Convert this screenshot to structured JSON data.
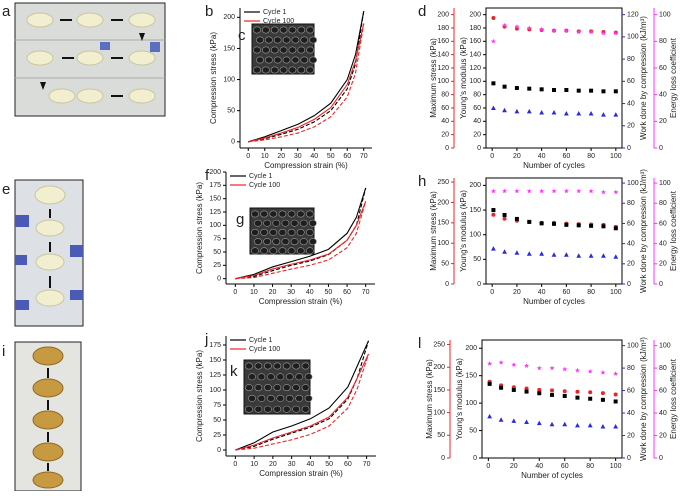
{
  "photos": [
    {
      "panel": "a"
    },
    {
      "panel": "e"
    },
    {
      "panel": "i"
    }
  ],
  "chart_data": [
    {
      "type": "line",
      "panel": "b",
      "inset_panel": "c",
      "x_label": "Compression strain (%)",
      "y_label": "Compression stress (kPa)",
      "xlim": [
        -5,
        75
      ],
      "xticks": [
        0,
        10,
        20,
        30,
        40,
        50,
        60,
        70
      ],
      "ylim": [
        -10,
        215
      ],
      "yticks": [
        0,
        50,
        100,
        150,
        200
      ],
      "x": [
        0,
        10,
        20,
        30,
        40,
        50,
        60,
        65,
        70
      ],
      "series": [
        {
          "name": "Cycle 1",
          "color": "#000000",
          "values": [
            0,
            8,
            18,
            28,
            42,
            62,
            100,
            140,
            210
          ],
          "unloading_values": [
            0,
            5,
            12,
            20,
            32,
            50,
            85,
            125,
            210
          ]
        },
        {
          "name": "Cycle 100",
          "color": "#e8262a",
          "values": [
            0,
            6,
            14,
            23,
            36,
            55,
            92,
            130,
            190
          ],
          "unloading_values": [
            0,
            3,
            8,
            14,
            24,
            40,
            72,
            110,
            190
          ]
        }
      ]
    },
    {
      "type": "scatter",
      "panel": "d",
      "x_label": "Number of cycles",
      "xlim": [
        -5,
        105
      ],
      "xticks": [
        0,
        20,
        40,
        60,
        80,
        100
      ],
      "x": [
        1,
        10,
        20,
        30,
        40,
        50,
        60,
        70,
        80,
        90,
        100
      ],
      "series": [
        {
          "name": "Maximum stress (kPa)",
          "color": "#e8262a",
          "marker": "circle",
          "ylim": [
            0,
            210
          ],
          "yticks": [
            0,
            20,
            40,
            60,
            80,
            100,
            120,
            140,
            160,
            180,
            200
          ],
          "values": [
            195,
            182,
            179,
            178,
            177,
            176,
            176,
            175,
            175,
            174,
            173
          ]
        },
        {
          "name": "Young's modulus (kPa)",
          "color": "#000000",
          "marker": "square",
          "ylim": [
            0,
            210
          ],
          "yticks": [
            0,
            20,
            40,
            60,
            80,
            100,
            120,
            140,
            160,
            180,
            200
          ],
          "values": [
            97,
            92,
            90,
            89,
            88,
            87,
            87,
            86,
            86,
            85,
            85
          ]
        },
        {
          "name": "Work done by compression (kJ/m³)",
          "color": "#2b2bd9",
          "marker": "triangle",
          "ylim": [
            0,
            126
          ],
          "yticks": [
            0,
            20,
            40,
            60,
            80,
            100,
            120
          ],
          "values": [
            36,
            34,
            33,
            33,
            32,
            32,
            31,
            31,
            31,
            30,
            30
          ]
        },
        {
          "name": "Energy loss coefficient",
          "color": "#ff33ff",
          "marker": "star",
          "ylim": [
            0,
            105
          ],
          "yticks": [
            0,
            20,
            40,
            60,
            80,
            100
          ],
          "values": [
            80,
            92,
            91,
            90,
            89,
            88,
            88,
            87,
            87,
            86,
            86
          ]
        }
      ]
    },
    {
      "type": "line",
      "panel": "f",
      "inset_panel": "g",
      "x_label": "Compression strain (%)",
      "y_label": "Compression stress (kPa)",
      "xlim": [
        -5,
        75
      ],
      "xticks": [
        0,
        10,
        20,
        30,
        40,
        50,
        60,
        70
      ],
      "ylim": [
        -10,
        200
      ],
      "yticks": [
        0,
        25,
        50,
        75,
        100,
        125,
        150,
        175,
        200
      ],
      "x": [
        0,
        10,
        20,
        30,
        40,
        50,
        60,
        65,
        70
      ],
      "series": [
        {
          "name": "Cycle 1",
          "color": "#000000",
          "values": [
            0,
            8,
            22,
            32,
            42,
            55,
            85,
            115,
            170
          ],
          "unloading_values": [
            0,
            4,
            15,
            25,
            33,
            45,
            72,
            100,
            170
          ]
        },
        {
          "name": "Cycle 100",
          "color": "#e8262a",
          "values": [
            0,
            6,
            18,
            27,
            35,
            46,
            72,
            100,
            145
          ],
          "unloading_values": [
            0,
            2,
            10,
            18,
            25,
            35,
            58,
            85,
            145
          ]
        }
      ]
    },
    {
      "type": "scatter",
      "panel": "h",
      "x_label": "Number of cycles",
      "xlim": [
        -5,
        105
      ],
      "xticks": [
        0,
        20,
        40,
        60,
        80,
        100
      ],
      "x": [
        1,
        10,
        20,
        30,
        40,
        50,
        60,
        70,
        80,
        90,
        100
      ],
      "series": [
        {
          "name": "Maximum stress (kPa)",
          "color": "#e8262a",
          "marker": "circle",
          "ylim": [
            0,
            260
          ],
          "yticks": [
            0,
            50,
            100,
            150,
            200,
            250
          ],
          "values": [
            170,
            160,
            155,
            152,
            150,
            150,
            148,
            147,
            146,
            145,
            140
          ]
        },
        {
          "name": "Young's modulus (kPa)",
          "color": "#000000",
          "marker": "square",
          "ylim": [
            0,
            215
          ],
          "yticks": [
            0,
            50,
            100,
            150,
            200
          ],
          "values": [
            150,
            140,
            132,
            126,
            123,
            122,
            120,
            119,
            118,
            117,
            113
          ]
        },
        {
          "name": "Work done by compression (kJ/m³)",
          "color": "#2b2bd9",
          "marker": "triangle",
          "ylim": [
            0,
            105
          ],
          "yticks": [
            0,
            20,
            40,
            60,
            80,
            100
          ],
          "values": [
            35,
            32,
            31,
            30,
            30,
            29,
            29,
            28,
            28,
            28,
            27
          ]
        },
        {
          "name": "Energy loss coefficient",
          "color": "#ff33ff",
          "marker": "star",
          "ylim": [
            0,
            105
          ],
          "yticks": [
            0,
            20,
            40,
            60,
            80,
            100
          ],
          "values": [
            92,
            92,
            92,
            92,
            92,
            92,
            92,
            92,
            92,
            91,
            91
          ]
        }
      ]
    },
    {
      "type": "line",
      "panel": "j",
      "inset_panel": "k",
      "x_label": "Compression strain (%)",
      "y_label": "Compression stress (kPa)",
      "xlim": [
        -5,
        75
      ],
      "xticks": [
        0,
        10,
        20,
        30,
        40,
        50,
        60,
        70
      ],
      "ylim": [
        -10,
        190
      ],
      "yticks": [
        0,
        25,
        50,
        75,
        100,
        125,
        150,
        175
      ],
      "x": [
        0,
        10,
        20,
        30,
        40,
        50,
        60,
        65,
        71
      ],
      "series": [
        {
          "name": "Cycle 1",
          "color": "#000000",
          "values": [
            0,
            12,
            30,
            40,
            52,
            70,
            105,
            140,
            182
          ],
          "unloading_values": [
            0,
            6,
            18,
            28,
            38,
            52,
            85,
            120,
            182
          ]
        },
        {
          "name": "Cycle 100",
          "color": "#e8262a",
          "values": [
            0,
            8,
            20,
            30,
            40,
            55,
            88,
            120,
            160
          ],
          "unloading_values": [
            0,
            3,
            10,
            17,
            26,
            40,
            70,
            102,
            160
          ]
        }
      ]
    },
    {
      "type": "scatter",
      "panel": "l",
      "x_label": "Number of cycles",
      "xlim": [
        -5,
        105
      ],
      "xticks": [
        0,
        20,
        40,
        60,
        80,
        100
      ],
      "x": [
        1,
        10,
        20,
        30,
        40,
        50,
        60,
        70,
        80,
        90,
        100
      ],
      "series": [
        {
          "name": "Maximum stress (kPa)",
          "color": "#e8262a",
          "marker": "circle",
          "ylim": [
            0,
            260
          ],
          "yticks": [
            0,
            50,
            100,
            150,
            200,
            250
          ],
          "values": [
            168,
            160,
            156,
            153,
            150,
            149,
            147,
            146,
            145,
            143,
            140
          ]
        },
        {
          "name": "Young's modulus (kPa)",
          "color": "#000000",
          "marker": "square",
          "ylim": [
            0,
            215
          ],
          "yticks": [
            0,
            50,
            100,
            150,
            200
          ],
          "values": [
            135,
            128,
            124,
            121,
            118,
            115,
            113,
            110,
            108,
            106,
            103
          ]
        },
        {
          "name": "Work done by compression (kJ/m³)",
          "color": "#2b2bd9",
          "marker": "triangle",
          "ylim": [
            0,
            105
          ],
          "yticks": [
            0,
            20,
            40,
            60,
            80,
            100
          ],
          "values": [
            37,
            34,
            33,
            32,
            31,
            30,
            30,
            29,
            29,
            28,
            28
          ]
        },
        {
          "name": "Energy loss coefficient",
          "color": "#ff33ff",
          "marker": "star",
          "ylim": [
            0,
            105
          ],
          "yticks": [
            0,
            20,
            40,
            60,
            80,
            100
          ],
          "values": [
            84,
            85,
            83,
            82,
            80,
            80,
            79,
            78,
            77,
            76,
            75
          ]
        }
      ]
    }
  ]
}
